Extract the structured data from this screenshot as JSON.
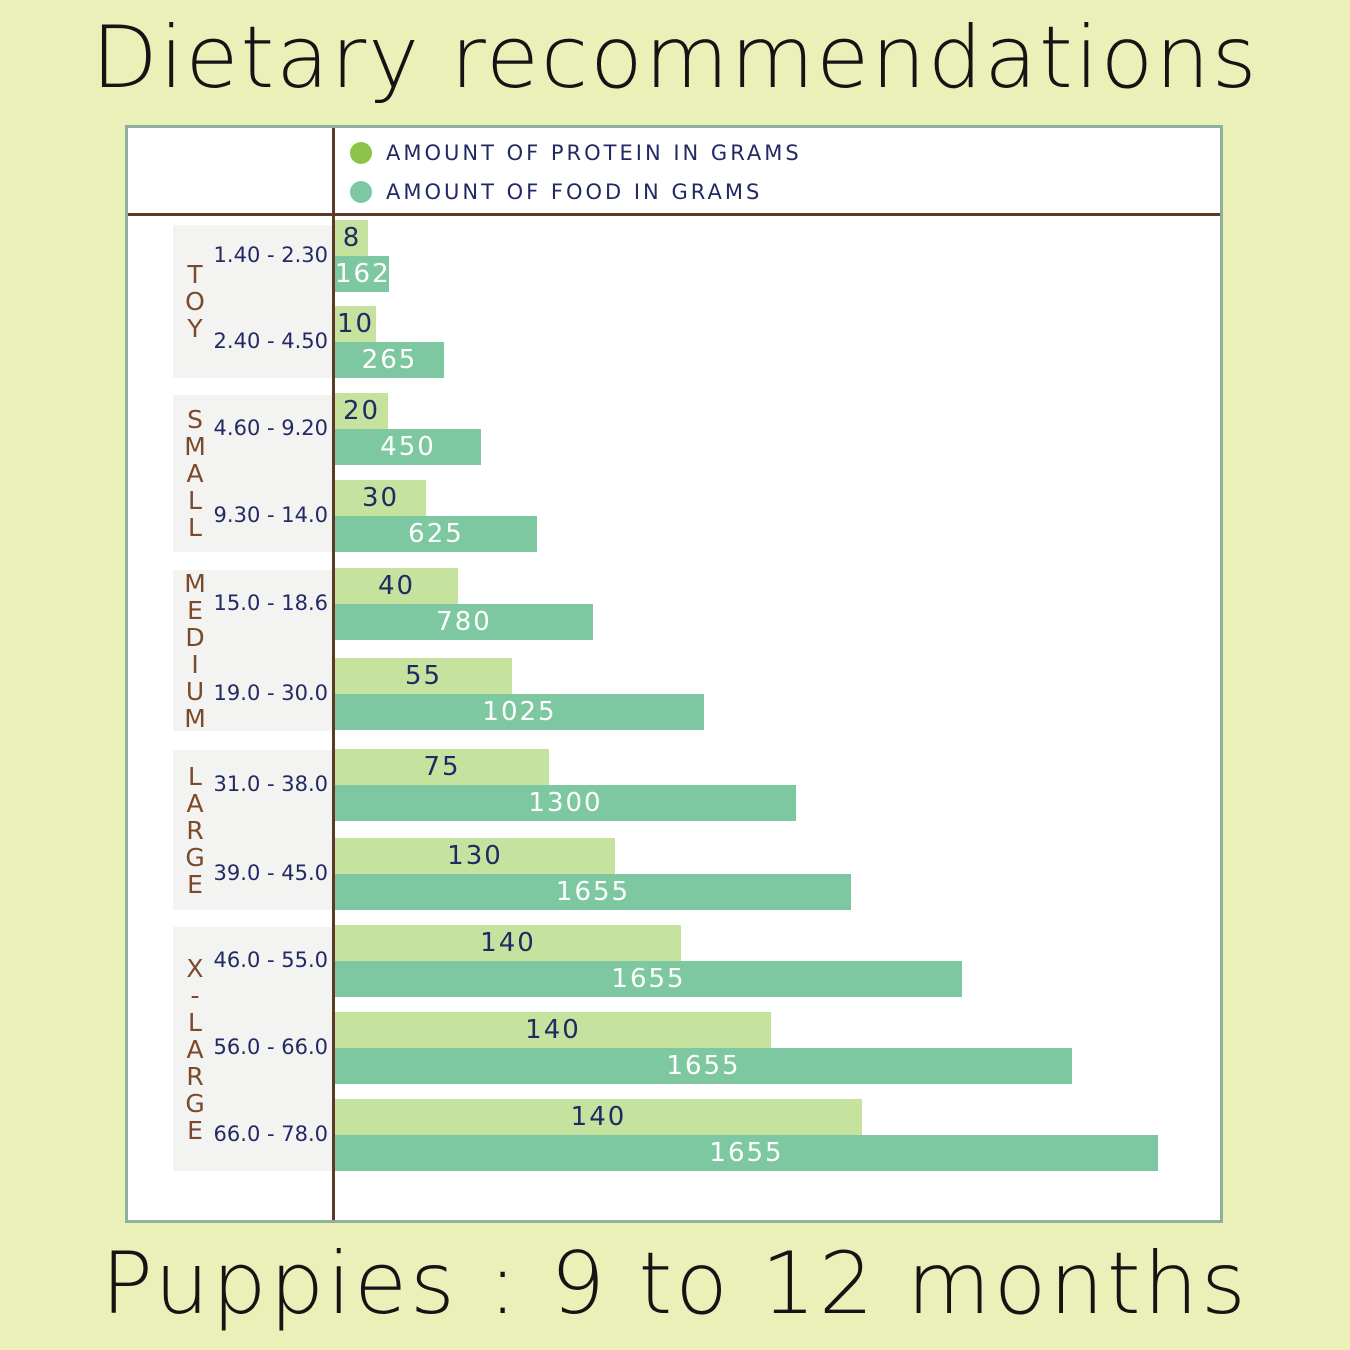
{
  "title": "Dietary recommendations",
  "subtitle": "Puppies : 9 to 12 months",
  "colors": {
    "background": "#eaf0b8",
    "protein": "#c6e29f",
    "food": "#7ec8a1",
    "legend_protein_dot": "#8dc34a",
    "legend_food_dot": "#7ec8a1",
    "group_label": "#7a4a2b",
    "text_navy": "#232a63"
  },
  "legend": [
    {
      "label": "AMOUNT OF PROTEIN IN GRAMS",
      "color": "#8dc34a"
    },
    {
      "label": "AMOUNT OF FOOD IN GRAMS",
      "color": "#7ec8a1"
    }
  ],
  "chart_data": {
    "type": "bar",
    "orientation": "horizontal",
    "title": "Dietary recommendations",
    "subtitle": "Puppies : 9 to 12 months",
    "legend_position": "top",
    "grid": false,
    "groups": [
      {
        "name": "TOY",
        "categories": [
          "1.40 - 2.30",
          "2.40 - 4.50"
        ]
      },
      {
        "name": "SMALL",
        "categories": [
          "4.60 - 9.20",
          "9.30 - 14.0"
        ]
      },
      {
        "name": "MEDIUM",
        "categories": [
          "15.0 - 18.6",
          "19.0 - 30.0"
        ]
      },
      {
        "name": "LARGE",
        "categories": [
          "31.0 - 38.0",
          "39.0 - 45.0"
        ]
      },
      {
        "name": "X-LARGE",
        "categories": [
          "46.0 - 55.0",
          "56.0 - 66.0",
          "66.0 - 78.0"
        ]
      }
    ],
    "categories": [
      "1.40 - 2.30",
      "2.40 - 4.50",
      "4.60 - 9.20",
      "9.30 - 14.0",
      "15.0 - 18.6",
      "19.0 - 30.0",
      "31.0 - 38.0",
      "39.0 - 45.0",
      "46.0 - 55.0",
      "56.0 - 66.0",
      "66.0 - 78.0"
    ],
    "series": [
      {
        "name": "AMOUNT OF PROTEIN IN GRAMS",
        "values": [
          8,
          10,
          20,
          30,
          40,
          55,
          75,
          130,
          140,
          140,
          140
        ]
      },
      {
        "name": "AMOUNT OF FOOD IN GRAMS",
        "values": [
          162,
          265,
          450,
          625,
          780,
          1025,
          1300,
          1655,
          1655,
          1655,
          1655
        ]
      }
    ],
    "bar_extent": {
      "protein": [
        0.04,
        0.05,
        0.065,
        0.11,
        0.15,
        0.215,
        0.26,
        0.34,
        0.42,
        0.53,
        0.64
      ],
      "food": [
        0.066,
        0.133,
        0.178,
        0.246,
        0.313,
        0.448,
        0.56,
        0.627,
        0.762,
        0.896,
        1.0
      ]
    }
  }
}
